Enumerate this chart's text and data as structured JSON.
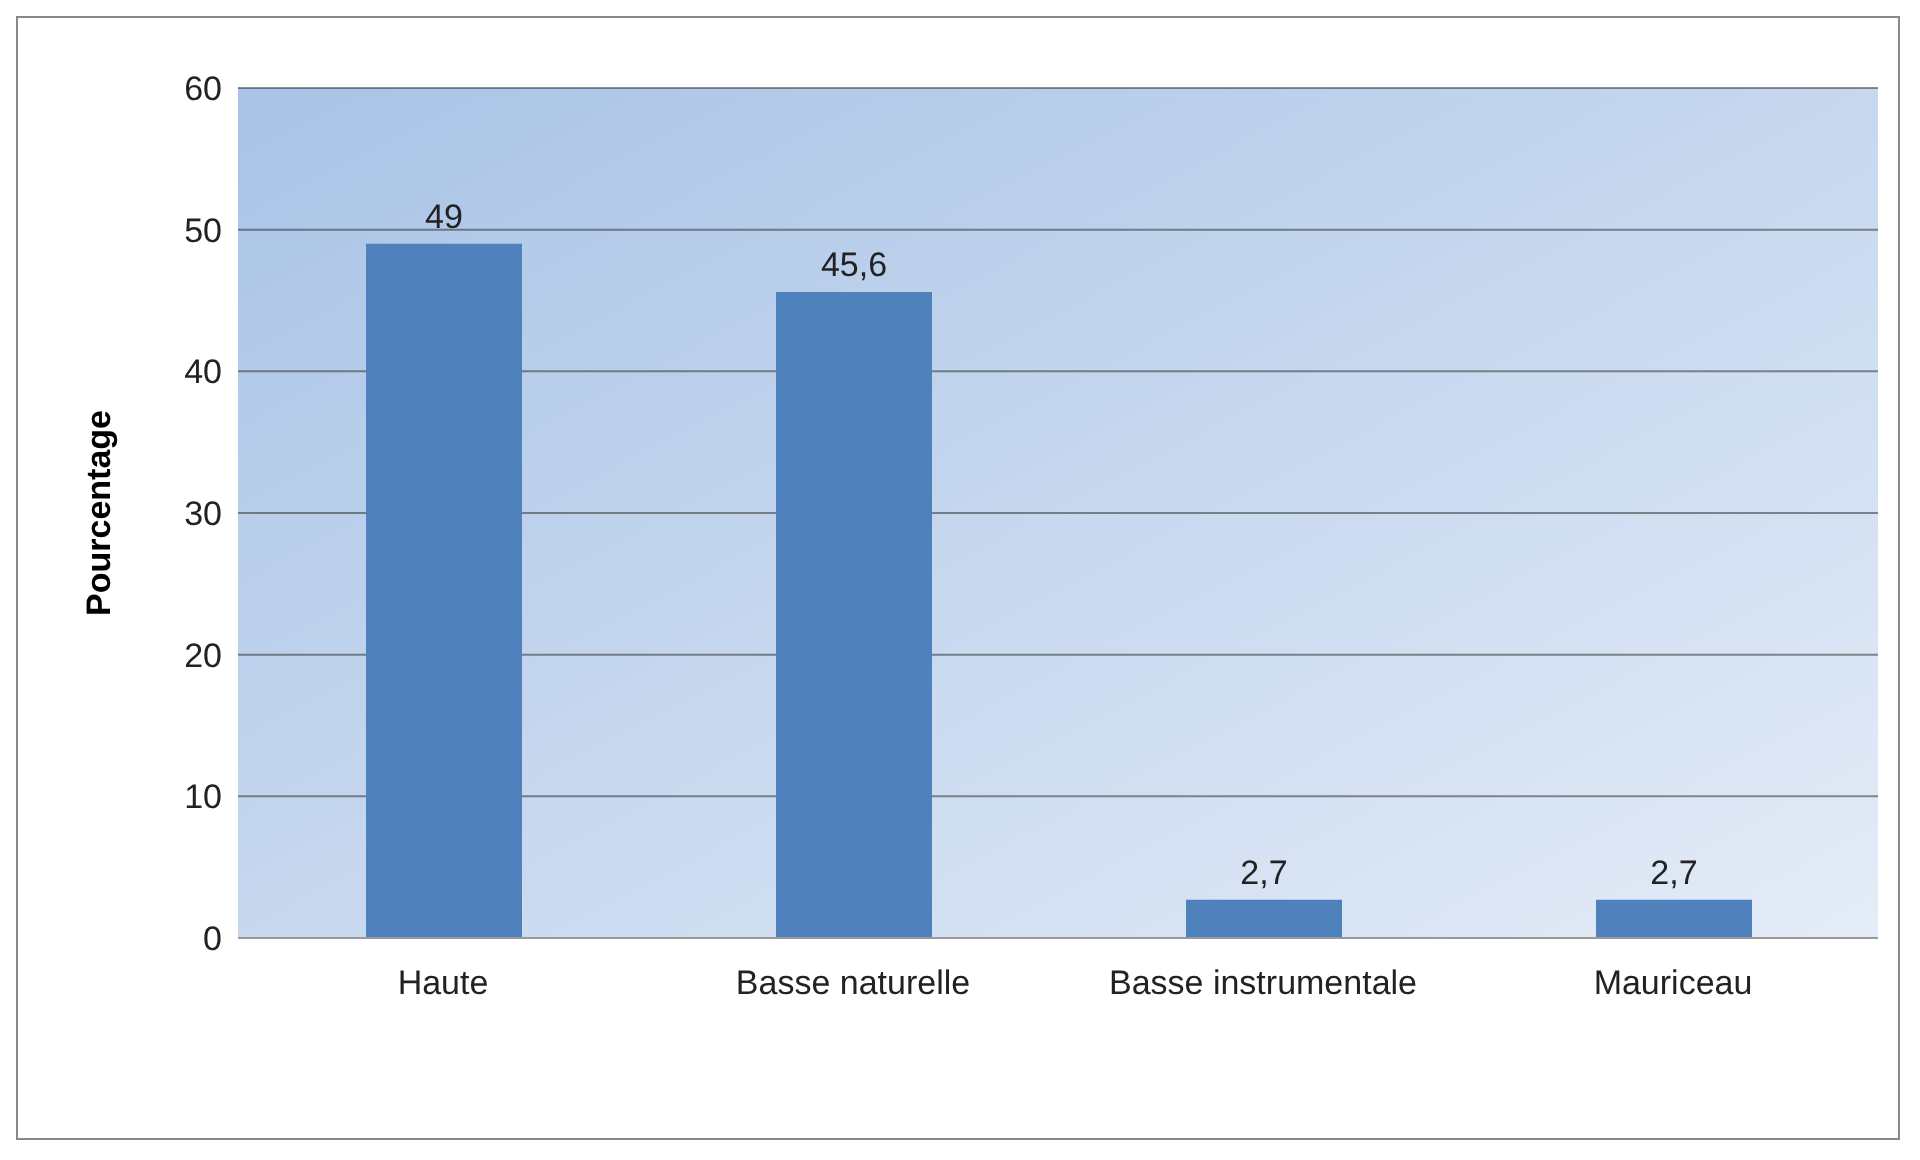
{
  "chart_data": {
    "type": "bar",
    "ylabel": "Pourcentage",
    "categories": [
      "Haute",
      "Basse naturelle",
      "Basse instrumentale",
      "Mauriceau"
    ],
    "values": [
      49,
      45.6,
      2.7,
      2.7
    ],
    "value_labels": [
      "49",
      "45,6",
      "2,7",
      "2,7"
    ],
    "color": "#4f81bd",
    "ylim": [
      0,
      60
    ],
    "yticks": [
      0,
      10,
      20,
      30,
      40,
      50,
      60
    ],
    "grid": "y",
    "legend": false
  }
}
